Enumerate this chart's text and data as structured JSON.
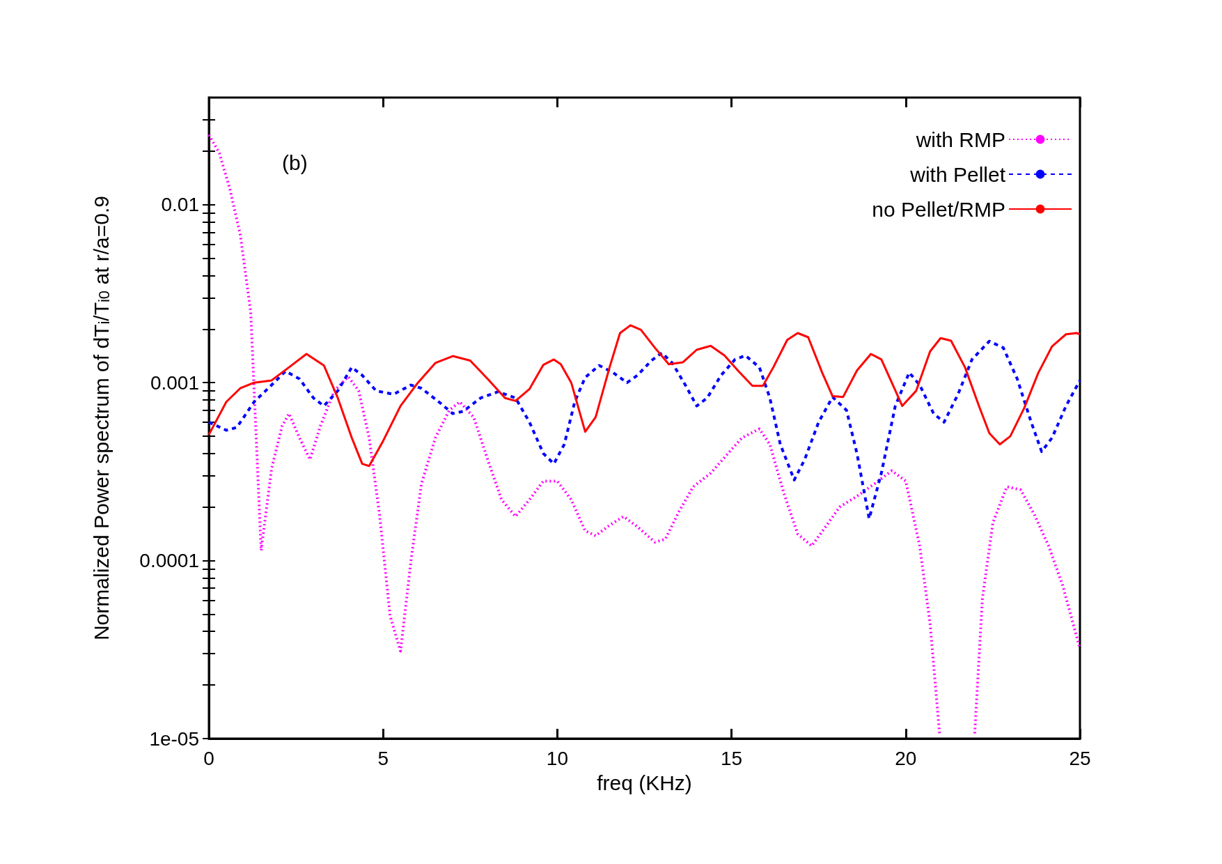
{
  "chart_data": {
    "type": "line",
    "xlabel": "freq (KHz)",
    "ylabel": "Normalized Power spectrum of dT$_{i}$/T$_{i0}$ at r/a=0.9",
    "annotations": [
      "(b)"
    ],
    "log": "y",
    "grid": false,
    "legend": "top right",
    "marker": "none",
    "xlim": [
      0,
      25
    ],
    "xticks": [
      0,
      5,
      10,
      15,
      20,
      25
    ],
    "ylim": [
      1e-05,
      0.04
    ],
    "yticks": [
      {
        "value": 1e-05,
        "label": "1e-05"
      },
      {
        "value": 2e-05,
        "label": null
      },
      {
        "value": 3e-05,
        "label": null
      },
      {
        "value": 4e-05,
        "label": null
      },
      {
        "value": 5e-05,
        "label": null
      },
      {
        "value": 6e-05,
        "label": null
      },
      {
        "value": 7e-05,
        "label": null
      },
      {
        "value": 8e-05,
        "label": null
      },
      {
        "value": 9e-05,
        "label": null
      },
      {
        "value": 0.0001,
        "label": "0.0001"
      },
      {
        "value": 0.0002,
        "label": null
      },
      {
        "value": 0.0003,
        "label": null
      },
      {
        "value": 0.0004,
        "label": null
      },
      {
        "value": 0.0005,
        "label": null
      },
      {
        "value": 0.0006,
        "label": null
      },
      {
        "value": 0.0007,
        "label": null
      },
      {
        "value": 0.0008,
        "label": null
      },
      {
        "value": 0.0009,
        "label": null
      },
      {
        "value": 0.001,
        "label": "0.001"
      },
      {
        "value": 0.002,
        "label": null
      },
      {
        "value": 0.003,
        "label": null
      },
      {
        "value": 0.004,
        "label": null
      },
      {
        "value": 0.005,
        "label": null
      },
      {
        "value": 0.006,
        "label": null
      },
      {
        "value": 0.007,
        "label": null
      },
      {
        "value": 0.008,
        "label": null
      },
      {
        "value": 0.009,
        "label": null
      },
      {
        "value": 0.01,
        "label": "0.01"
      },
      {
        "value": 0.02,
        "label": null
      },
      {
        "value": 0.03,
        "label": null
      }
    ],
    "series": [
      {
        "name": "with RMP",
        "color": "#ff00ff",
        "line_style": "dotted",
        "x": [
          0,
          0.3,
          0.6,
          0.9,
          1.2,
          1.5,
          1.8,
          2.1,
          2.3,
          2.6,
          2.9,
          3.2,
          3.6,
          4.0,
          4.3,
          4.6,
          4.9,
          5.2,
          5.5,
          5.8,
          6.1,
          6.5,
          6.9,
          7.2,
          7.6,
          8.0,
          8.4,
          8.8,
          9.2,
          9.6,
          10.0,
          10.4,
          10.8,
          11.1,
          11.5,
          11.9,
          12.3,
          12.8,
          13.1,
          13.5,
          13.9,
          14.4,
          14.9,
          15.3,
          15.8,
          16.1,
          16.5,
          16.9,
          17.3,
          17.7,
          18.1,
          18.6,
          19.1,
          19.6,
          20.0,
          20.4,
          20.7,
          20.97,
          21.5,
          21.98,
          22.2,
          22.5,
          22.9,
          23.3,
          23.7,
          24.1,
          24.5,
          25
        ],
        "values": [
          0.0247,
          0.0195,
          0.0123,
          0.0068,
          0.0025,
          0.000114,
          0.00033,
          0.00057,
          0.00067,
          0.00049,
          0.00037,
          0.00057,
          0.0009,
          0.00108,
          0.0009,
          0.00049,
          0.00018,
          4.9e-05,
          3.1e-05,
          0.0001,
          0.00027,
          0.00049,
          0.0007,
          0.00078,
          0.00064,
          0.00037,
          0.00022,
          0.000177,
          0.00022,
          0.00028,
          0.00028,
          0.00022,
          0.000147,
          0.000138,
          0.000158,
          0.000177,
          0.000155,
          0.000127,
          0.000132,
          0.00019,
          0.00026,
          0.00031,
          0.0004,
          0.00049,
          0.00055,
          0.00045,
          0.00024,
          0.000141,
          0.000121,
          0.000155,
          0.0002,
          0.00023,
          0.00027,
          0.00032,
          0.00028,
          0.000121,
          4.4e-05,
          1.07e-05,
          null,
          1.07e-05,
          6.1e-05,
          0.000163,
          0.00026,
          0.00025,
          0.00018,
          0.000121,
          7.3e-05,
          3.2e-05
        ]
      },
      {
        "name": "with Pellet",
        "color": "#0000ff",
        "line_style": "dashed",
        "x": [
          0,
          0.5,
          0.8,
          1.3,
          1.8,
          2.2,
          2.6,
          3.0,
          3.3,
          3.7,
          4.1,
          4.4,
          4.8,
          5.3,
          5.8,
          6.1,
          6.6,
          7.0,
          7.3,
          7.8,
          8.3,
          8.8,
          9.2,
          9.6,
          9.9,
          10.2,
          10.5,
          10.8,
          11.2,
          11.6,
          12.0,
          12.3,
          12.7,
          13.0,
          13.3,
          13.7,
          14.0,
          14.3,
          14.7,
          15.1,
          15.4,
          15.8,
          16.1,
          16.4,
          16.8,
          17.1,
          17.5,
          17.9,
          18.3,
          18.6,
          18.95,
          19.3,
          19.7,
          20.1,
          20.4,
          20.8,
          21.1,
          21.5,
          21.9,
          22.4,
          22.8,
          23.2,
          23.6,
          23.9,
          24.2,
          24.6,
          25
        ],
        "values": [
          0.0006,
          0.00054,
          0.00056,
          0.00078,
          0.00097,
          0.00116,
          0.00105,
          0.00082,
          0.00074,
          0.0009,
          0.00122,
          0.0011,
          0.0009,
          0.00086,
          0.00097,
          0.00093,
          0.00078,
          0.00067,
          0.00069,
          0.00082,
          0.00089,
          0.00082,
          0.0006,
          0.0004,
          0.00035,
          0.00045,
          0.00078,
          0.00107,
          0.00125,
          0.00114,
          0.001,
          0.0011,
          0.00133,
          0.00147,
          0.00129,
          0.00095,
          0.00074,
          0.00082,
          0.0011,
          0.00135,
          0.00142,
          0.00122,
          0.00082,
          0.00045,
          0.000284,
          0.00037,
          0.0006,
          0.00083,
          0.0007,
          0.0004,
          0.000172,
          0.00031,
          0.00074,
          0.00114,
          0.00097,
          0.00067,
          0.0006,
          0.00086,
          0.00135,
          0.00171,
          0.00157,
          0.00105,
          0.0006,
          0.00041,
          0.00049,
          0.00074,
          0.00103
        ]
      },
      {
        "name": "no Pellet/RMP",
        "color": "#ff0000",
        "line_style": "solid",
        "x": [
          0,
          0.5,
          0.9,
          1.3,
          1.8,
          2.3,
          2.8,
          3.3,
          3.7,
          4.1,
          4.4,
          4.6,
          5.0,
          5.5,
          6.0,
          6.5,
          7.0,
          7.5,
          8.0,
          8.5,
          8.8,
          9.2,
          9.6,
          9.9,
          10.1,
          10.4,
          10.8,
          11.1,
          11.5,
          11.8,
          12.1,
          12.4,
          12.8,
          13.2,
          13.6,
          14.0,
          14.4,
          14.8,
          15.2,
          15.6,
          15.9,
          16.2,
          16.6,
          16.9,
          17.2,
          17.6,
          17.9,
          18.2,
          18.6,
          19.0,
          19.3,
          19.6,
          19.9,
          20.3,
          20.7,
          21.0,
          21.3,
          21.7,
          22.1,
          22.4,
          22.7,
          23.0,
          23.4,
          23.8,
          24.2,
          24.6,
          24.9,
          25
        ],
        "values": [
          0.00051,
          0.00078,
          0.00093,
          0.001,
          0.00103,
          0.00122,
          0.00145,
          0.00125,
          0.00082,
          0.00049,
          0.00035,
          0.00034,
          0.00047,
          0.00074,
          0.001,
          0.00129,
          0.00141,
          0.00133,
          0.00105,
          0.00082,
          0.00079,
          0.00092,
          0.00126,
          0.00135,
          0.00127,
          0.001,
          0.00053,
          0.00064,
          0.00122,
          0.0019,
          0.0021,
          0.00198,
          0.00157,
          0.00127,
          0.0013,
          0.00153,
          0.00161,
          0.00142,
          0.00116,
          0.00096,
          0.00096,
          0.00122,
          0.00174,
          0.0019,
          0.0018,
          0.00114,
          0.00084,
          0.00083,
          0.00117,
          0.00145,
          0.00135,
          0.001,
          0.00074,
          0.0009,
          0.0015,
          0.00178,
          0.00172,
          0.00122,
          0.00074,
          0.00052,
          0.00045,
          0.0005,
          0.00072,
          0.00113,
          0.0016,
          0.00187,
          0.0019,
          0.00187
        ]
      }
    ]
  }
}
